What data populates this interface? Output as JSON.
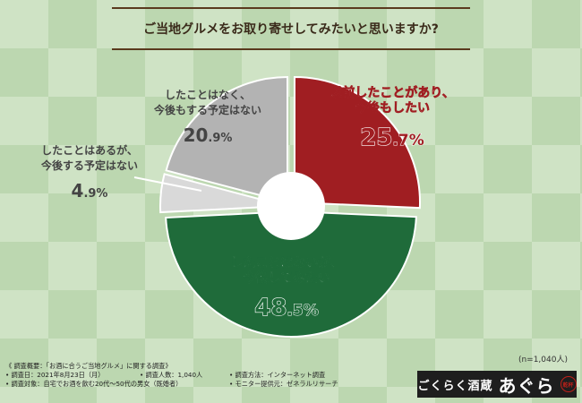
{
  "chart_data": {
    "type": "pie",
    "donut": true,
    "title": "ご当地グルメをお取り寄せしてみたいと思いますか?",
    "slices": [
      {
        "label_lines": [
          "以前したことがあり、",
          "今後もしたい"
        ],
        "value_int": "25",
        "value_dec": ".7%",
        "value": 25.7,
        "color": "#a01e22",
        "text_color": "#a01e22"
      },
      {
        "label_lines": [
          "したことはないが、",
          "今後してみたい"
        ],
        "value_int": "48",
        "value_dec": ".5%",
        "value": 48.5,
        "color": "#1f6b3a",
        "text_color": "#1f6b3a"
      },
      {
        "label_lines": [
          "したことはあるが、",
          "今後する予定はない"
        ],
        "value_int": "4",
        "value_dec": ".9%",
        "value": 4.9,
        "color": "#d9d9d9",
        "text_color": "#444444"
      },
      {
        "label_lines": [
          "したことはなく、",
          "今後もする予定はない"
        ],
        "value_int": "20",
        "value_dec": ".9%",
        "value": 20.9,
        "color": "#b3b3b3",
        "text_color": "#444444"
      }
    ],
    "sample": "(n=1,040人)"
  },
  "notes": {
    "rows": [
      [
        "《 調査概要：「お酒に合うご当地グルメ」に関する調査》"
      ],
      [
        "• 調査日：2021年8月23日（月）",
        "• 調査人数：1,040人",
        "• 調査方法：インターネット調査"
      ],
      [
        "• 調査対象：自宅でお酒を飲む20代〜50代の男女（既婚者）",
        "",
        "• モニター提供元：ゼネラルリサーチ"
      ]
    ]
  },
  "logo": {
    "small": "ごくらく酒蔵",
    "big": "あぐら",
    "seal": "乾杯"
  }
}
